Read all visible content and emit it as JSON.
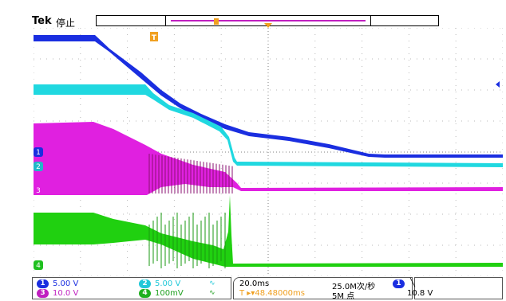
{
  "header": {
    "brand": "Tek",
    "state": "停止"
  },
  "colors": {
    "ch1": "#1a2ee0",
    "ch2": "#20d8e0",
    "ch3": "#e020e0",
    "ch4": "#20e020",
    "trigger": "#f0a020",
    "record": "#c020c0"
  },
  "markers": {
    "trigger_label": "T",
    "ch1": "1",
    "ch2": "2",
    "ch3": "3",
    "ch4": "4"
  },
  "readout": {
    "channels": [
      {
        "badge": "1",
        "scale": "5.00 V",
        "coupling": ""
      },
      {
        "badge": "2",
        "scale": "5.00 V",
        "coupling": "∿"
      },
      {
        "badge": "3",
        "scale": "10.0 V",
        "coupling": ""
      },
      {
        "badge": "4",
        "scale": "100mV",
        "coupling": "∿"
      }
    ],
    "timebase": "20.0ms",
    "trigger_delay": "T ▸▾48.48000ms",
    "sample_rate": "25.0M次/秒",
    "record_length": "5M 点",
    "trigger_source_badge": "1",
    "trigger_slope": "╲",
    "trigger_level": "10.8 V"
  }
}
